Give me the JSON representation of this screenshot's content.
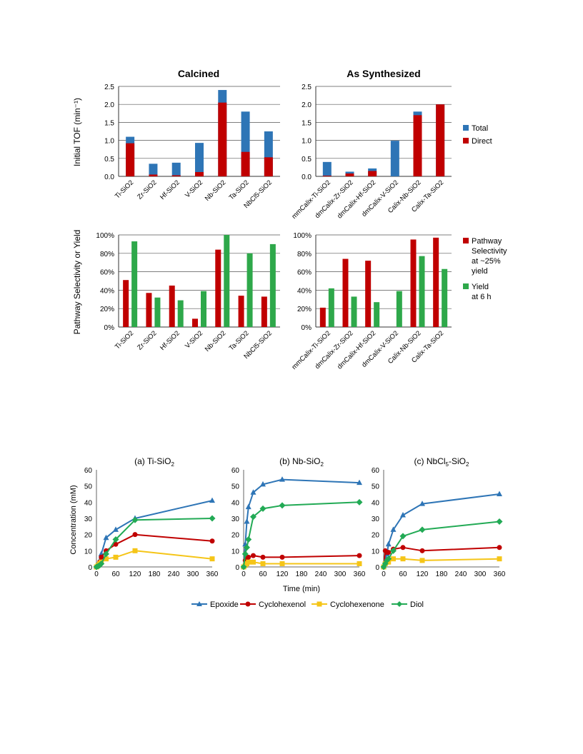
{
  "colors": {
    "total": "#2e75b6",
    "direct": "#c00000",
    "pathway": "#c00000",
    "yield": "#2ea84a",
    "epoxide": "#2e75b6",
    "cyclohexenol": "#c00000",
    "cyclohexenone": "#f5c518",
    "diol": "#22aa55"
  },
  "bar_panel_titles": {
    "left": "Calcined",
    "right": "As Synthesized"
  },
  "bar_axis_labels": {
    "tof": "Initial TOF (min⁻¹)",
    "selectivity": "Pathway Selectivity or Yield"
  },
  "bar_legends": {
    "tof": [
      "Total",
      "Direct"
    ],
    "selectivity": [
      [
        "Pathway",
        "Selectivity",
        "at ~25%",
        "yield"
      ],
      [
        "Yield",
        "at 6 h"
      ]
    ]
  },
  "line_panel_titles": {
    "a_prefix": "(a) Ti-SiO",
    "a_sub": "2",
    "b_prefix": "(b) Nb-SiO",
    "b_sub": "2",
    "c_prefix": "(c) NbCl",
    "c_sub1": "5",
    "c_mid": "-SiO",
    "c_sub2": "2"
  },
  "line_axis_labels": {
    "y": "Concentration (mM)",
    "x": "Time (min)"
  },
  "line_legend": [
    "Epoxide",
    "Cyclohexenol",
    "Cyclohexenone",
    "Diol"
  ],
  "chart_data": [
    {
      "type": "bar",
      "title": "Calcined",
      "ylabel": "Initial TOF (min⁻¹)",
      "ylim": [
        0,
        2.5
      ],
      "yticks": [
        "0.0",
        "0.5",
        "1.0",
        "1.5",
        "2.0",
        "2.5"
      ],
      "categories": [
        "Ti-SiO2",
        "Zr-SiO2",
        "Hf-SiO2",
        "V-SiO2",
        "Nb-SiO2",
        "Ta-SiO2",
        "NbCl5-SiO2"
      ],
      "stacked": true,
      "series": [
        {
          "name": "Direct",
          "values": [
            0.92,
            0.05,
            0.03,
            0.12,
            2.05,
            0.68,
            0.53
          ]
        },
        {
          "name": "Total",
          "values": [
            1.1,
            0.35,
            0.38,
            0.93,
            2.4,
            1.8,
            1.25
          ]
        }
      ],
      "grid": true
    },
    {
      "type": "bar",
      "title": "As Synthesized",
      "ylim": [
        0,
        2.5
      ],
      "yticks": [
        "0.0",
        "0.5",
        "1.0",
        "1.5",
        "2.0",
        "2.5"
      ],
      "categories": [
        "mmCalix-Ti-SiO2",
        "dmCalix-Zr-SiO2",
        "dmCalix-Hf-SiO2",
        "dmCalix-V-SiO2",
        "Calix-Nb-SiO2",
        "Calix-Ta-SiO2"
      ],
      "stacked": true,
      "series": [
        {
          "name": "Direct",
          "values": [
            0.02,
            0.08,
            0.15,
            0.0,
            1.7,
            2.0
          ]
        },
        {
          "name": "Total",
          "values": [
            0.4,
            0.13,
            0.22,
            0.99,
            1.8,
            2.0
          ]
        }
      ],
      "grid": true
    },
    {
      "type": "bar",
      "ylabel": "Pathway Selectivity or Yield",
      "ylim": [
        0,
        100
      ],
      "yticks": [
        "0%",
        "20%",
        "40%",
        "60%",
        "80%",
        "100%"
      ],
      "categories": [
        "Ti-SiO2",
        "Zr-SiO2",
        "Hf-SiO2",
        "V-SiO2",
        "Nb-SiO2",
        "Ta-SiO2",
        "NbCl5-SiO2"
      ],
      "series": [
        {
          "name": "Pathway Selectivity at ~25% yield",
          "values": [
            51,
            37,
            45,
            9,
            84,
            34,
            33
          ]
        },
        {
          "name": "Yield at 6 h",
          "values": [
            93,
            32,
            29,
            39,
            100,
            80,
            90
          ]
        }
      ],
      "grid": true
    },
    {
      "type": "bar",
      "ylim": [
        0,
        100
      ],
      "yticks": [
        "0%",
        "20%",
        "40%",
        "60%",
        "80%",
        "100%"
      ],
      "categories": [
        "mmCalix-Ti-SiO2",
        "dmCalix-Zr-SiO2",
        "dmCalix-Hf-SiO2",
        "dmCalix-V-SiO2",
        "Calix-Nb-SiO2",
        "Calix-Ta-SiO2"
      ],
      "series": [
        {
          "name": "Pathway Selectivity at ~25% yield",
          "values": [
            21,
            74,
            72,
            0,
            95,
            97
          ]
        },
        {
          "name": "Yield at 6 h",
          "values": [
            42,
            33,
            27,
            39,
            77,
            63
          ]
        }
      ],
      "grid": true
    },
    {
      "type": "line",
      "title": "(a) Ti-SiO2",
      "ylabel": "Concentration (mM)",
      "ylim": [
        0,
        60
      ],
      "xlim": [
        0,
        360
      ],
      "yticks": [
        "0",
        "10",
        "20",
        "30",
        "40",
        "50",
        "60"
      ],
      "xticks": [
        "0",
        "60",
        "120",
        "180",
        "240",
        "300",
        "360"
      ],
      "series": [
        {
          "name": "Epoxide",
          "x": [
            0,
            5,
            10,
            15,
            30,
            60,
            120,
            360
          ],
          "y": [
            0,
            2,
            4,
            8,
            18,
            23,
            30,
            41
          ]
        },
        {
          "name": "Cyclohexenol",
          "x": [
            0,
            5,
            10,
            15,
            30,
            60,
            120,
            360
          ],
          "y": [
            0,
            1,
            3,
            6,
            10,
            14,
            20,
            16
          ]
        },
        {
          "name": "Cyclohexenone",
          "x": [
            0,
            5,
            10,
            15,
            30,
            60,
            120,
            360
          ],
          "y": [
            0,
            1,
            2,
            3,
            5,
            6,
            10,
            5
          ]
        },
        {
          "name": "Diol",
          "x": [
            0,
            5,
            10,
            15,
            30,
            60,
            120,
            360
          ],
          "y": [
            0,
            0.5,
            1,
            2,
            8,
            17,
            29,
            30
          ]
        }
      ]
    },
    {
      "type": "line",
      "title": "(b) Nb-SiO2",
      "xlabel": "Time (min)",
      "ylim": [
        0,
        60
      ],
      "xlim": [
        0,
        360
      ],
      "yticks": [
        "0",
        "10",
        "20",
        "30",
        "40",
        "50",
        "60"
      ],
      "xticks": [
        "0",
        "60",
        "120",
        "180",
        "240",
        "300",
        "360"
      ],
      "series": [
        {
          "name": "Epoxide",
          "x": [
            0,
            5,
            10,
            15,
            30,
            60,
            120,
            360
          ],
          "y": [
            0,
            14,
            28,
            37,
            46,
            51,
            54,
            52
          ]
        },
        {
          "name": "Cyclohexenol",
          "x": [
            0,
            5,
            10,
            15,
            30,
            60,
            120,
            360
          ],
          "y": [
            0,
            4,
            5,
            6,
            7,
            6,
            6,
            7
          ]
        },
        {
          "name": "Cyclohexenone",
          "x": [
            0,
            5,
            10,
            15,
            30,
            60,
            120,
            360
          ],
          "y": [
            0,
            1,
            2,
            3,
            3,
            2,
            2,
            2
          ]
        },
        {
          "name": "Diol",
          "x": [
            0,
            5,
            10,
            15,
            30,
            60,
            120,
            360
          ],
          "y": [
            0,
            8,
            12,
            17,
            31,
            36,
            38,
            40
          ]
        }
      ]
    },
    {
      "type": "line",
      "title": "(c) NbCl5-SiO2",
      "ylim": [
        0,
        60
      ],
      "xlim": [
        0,
        360
      ],
      "yticks": [
        "0",
        "10",
        "20",
        "30",
        "40",
        "50",
        "60"
      ],
      "xticks": [
        "0",
        "60",
        "120",
        "180",
        "240",
        "300",
        "360"
      ],
      "series": [
        {
          "name": "Epoxide",
          "x": [
            0,
            5,
            10,
            15,
            30,
            60,
            120,
            360
          ],
          "y": [
            0,
            4,
            8,
            14,
            23,
            32,
            39,
            45
          ]
        },
        {
          "name": "Cyclohexenol",
          "x": [
            0,
            5,
            10,
            15,
            30,
            60,
            120,
            360
          ],
          "y": [
            0,
            10,
            9,
            9,
            11,
            12,
            10,
            12
          ]
        },
        {
          "name": "Cyclohexenone",
          "x": [
            0,
            5,
            10,
            15,
            30,
            60,
            120,
            360
          ],
          "y": [
            0,
            2,
            3,
            3,
            5,
            5,
            4,
            5
          ]
        },
        {
          "name": "Diol",
          "x": [
            0,
            5,
            10,
            15,
            30,
            60,
            120,
            360
          ],
          "y": [
            0,
            2,
            4,
            5,
            10,
            19,
            23,
            28
          ]
        }
      ]
    }
  ]
}
